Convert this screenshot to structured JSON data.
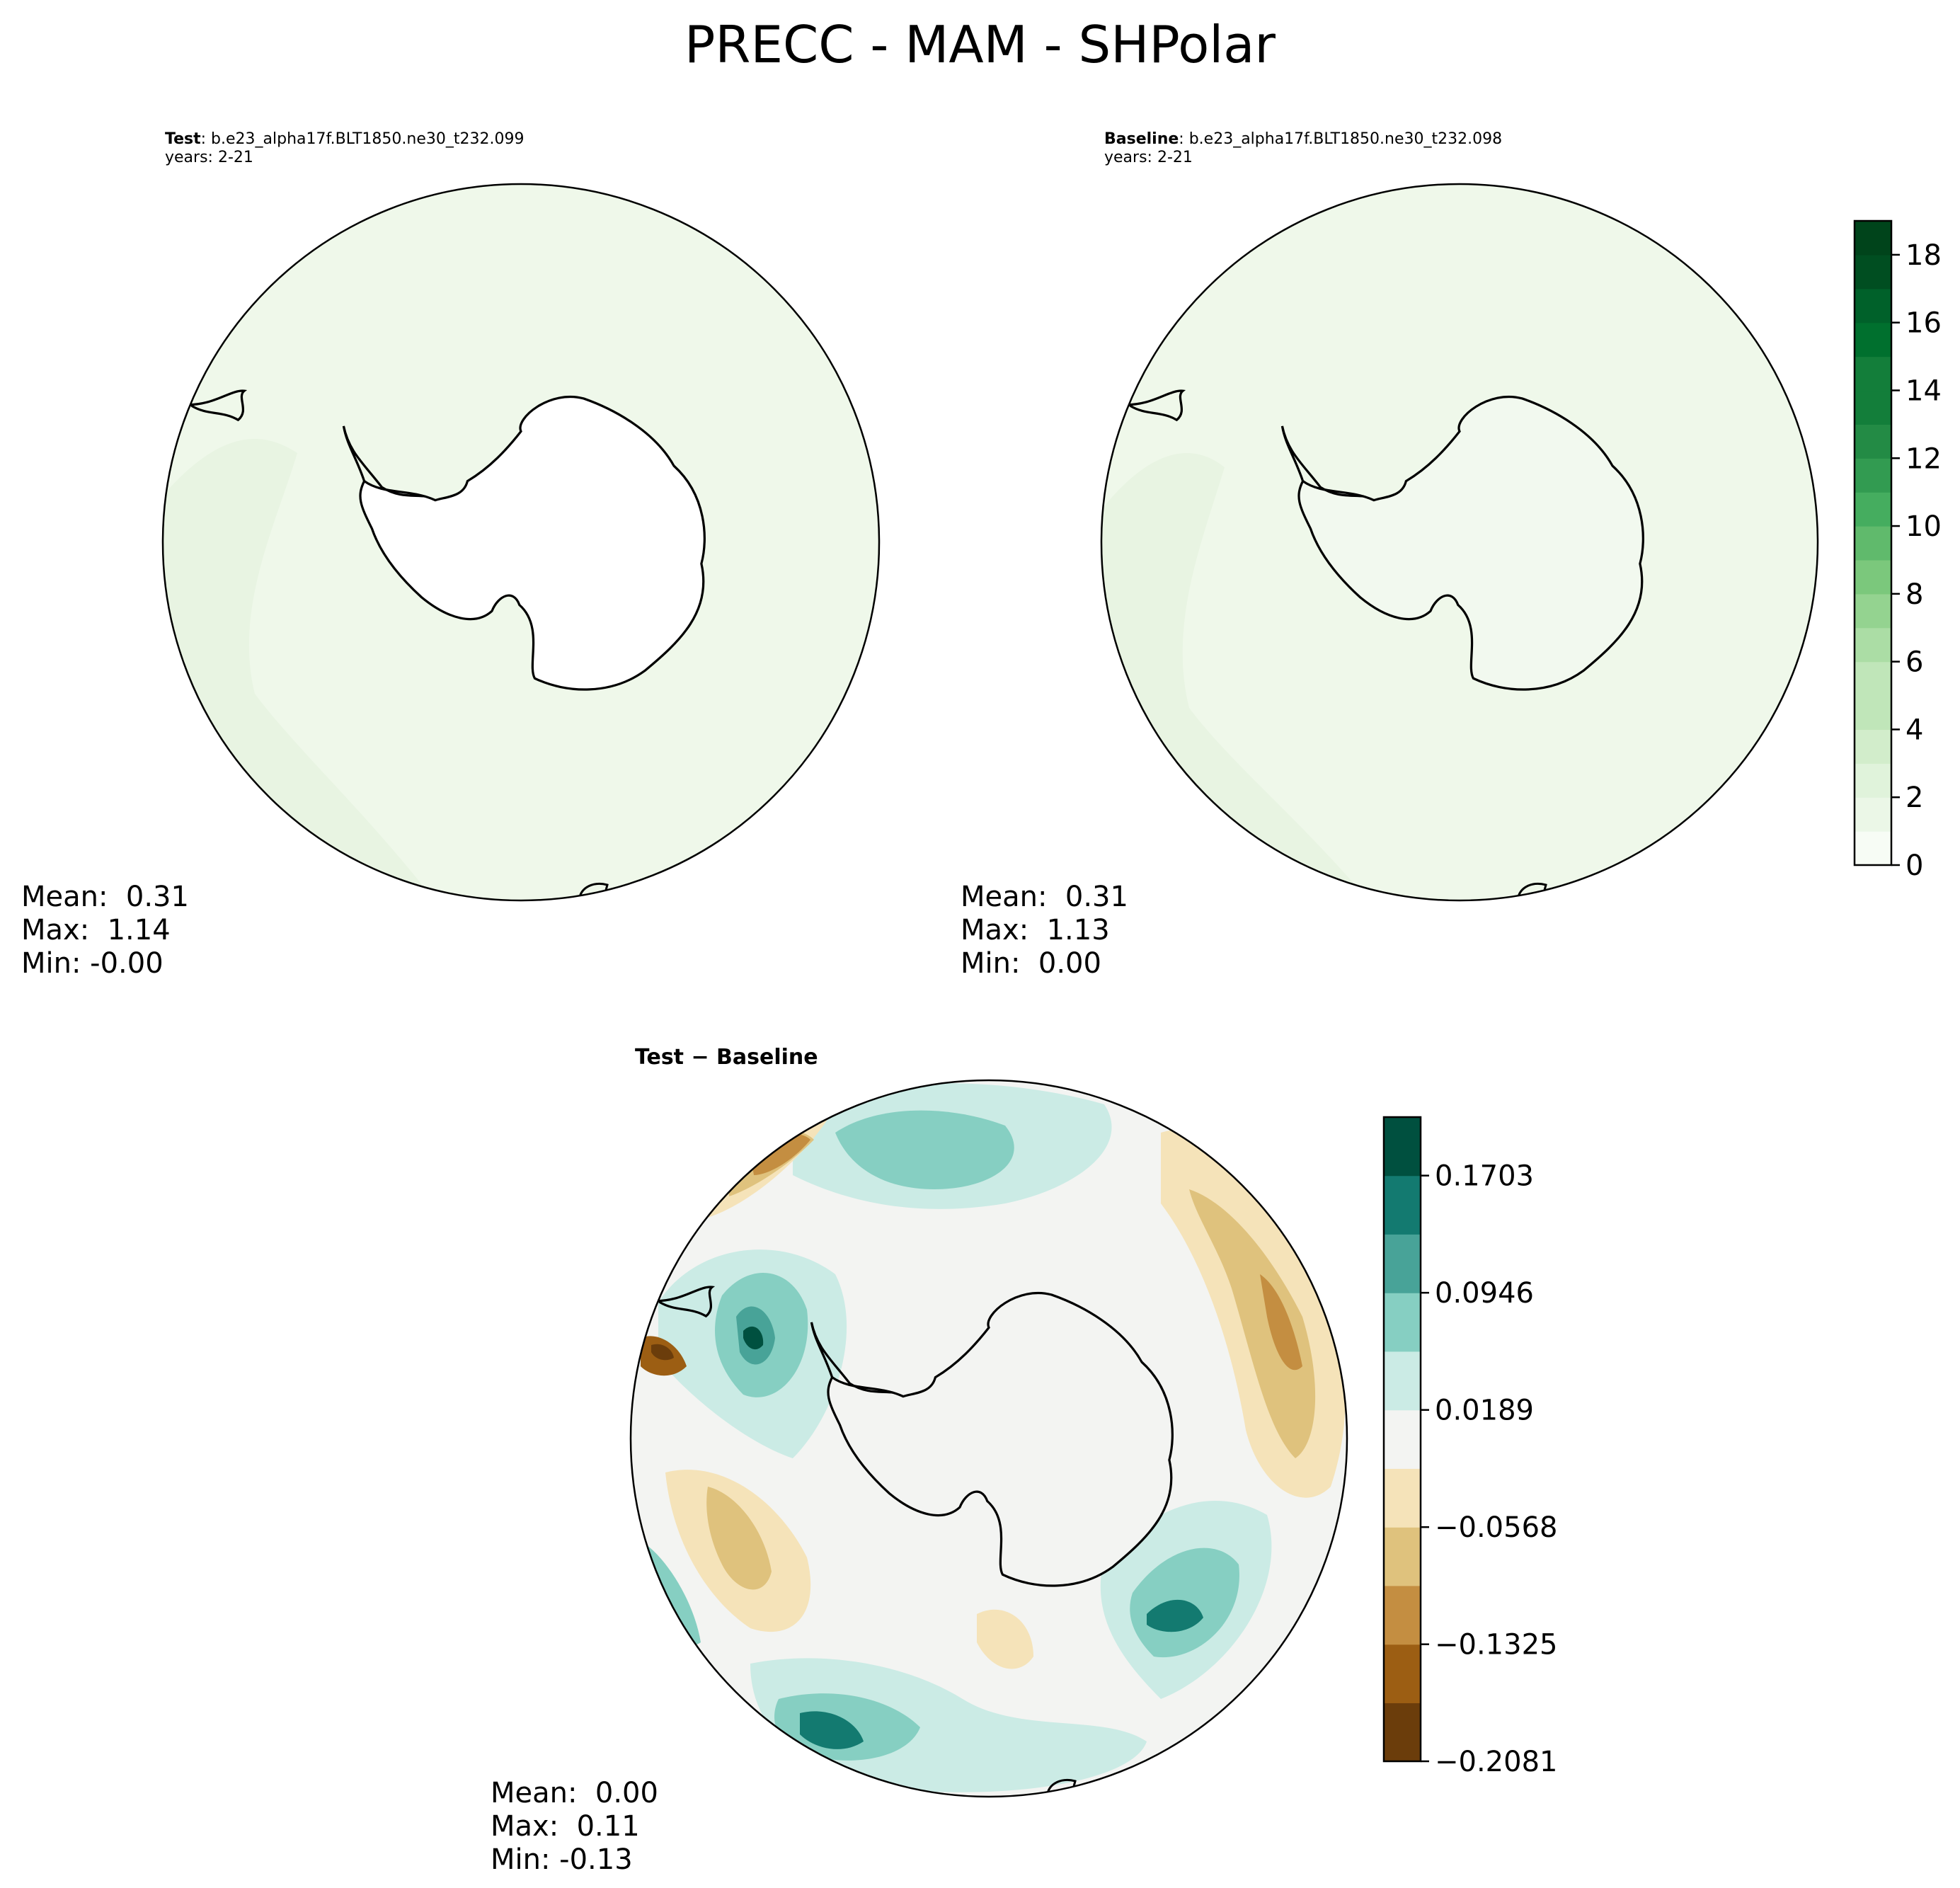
{
  "figure": {
    "title": "PRECC - MAM - SHPolar"
  },
  "panels": {
    "test": {
      "name": "Test",
      "case": ": b.e23_alpha17f.BLT1850.ne30_t232.099",
      "years": "years: 2-21",
      "mean": "Mean:  0.31",
      "max": "Max:  1.14",
      "min": "Min: -0.00"
    },
    "baseline": {
      "name": "Baseline",
      "case": ": b.e23_alpha17f.BLT1850.ne30_t232.098",
      "years": "years: 2-21",
      "mean": "Mean:  0.31",
      "max": "Max:  1.13",
      "min": "Min:  0.00"
    },
    "diff": {
      "title": "Test − Baseline",
      "mean": "Mean:  0.00",
      "max": "Max:  0.11",
      "min": "Min: -0.13"
    }
  },
  "colors": {
    "green_scale": [
      "#f7fcf5",
      "#ebf7e7",
      "#e0f3db",
      "#d2edcb",
      "#c0e6b9",
      "#abdda5",
      "#94d390",
      "#7bc87c",
      "#60ba6c",
      "#45ad5f",
      "#329b51",
      "#238b45",
      "#137e3a",
      "#00702e",
      "#00612a",
      "#004e21",
      "#00441b"
    ],
    "brbg_scale": [
      "#6b3d0b",
      "#9c5e13",
      "#c48e41",
      "#dfc27d",
      "#f5e3b9",
      "#f3f4f2",
      "#cbebe5",
      "#86cfc2",
      "#48a398",
      "#137a70",
      "#00503f"
    ],
    "outline": "#000000",
    "ocean_test": "#eff8ea",
    "ocean_test_dark": "#e8f4e2",
    "land_test": "#ffffff",
    "land_baseline": "#f2f9ef"
  },
  "chart_data": [
    {
      "type": "heatmap",
      "panel": "test",
      "projection": "south-polar-stereographic",
      "variable": "PRECC",
      "stats": {
        "mean": 0.31,
        "max": 1.14,
        "min": -0.0
      },
      "colorbar": "shared-green"
    },
    {
      "type": "heatmap",
      "panel": "baseline",
      "projection": "south-polar-stereographic",
      "variable": "PRECC",
      "stats": {
        "mean": 0.31,
        "max": 1.13,
        "min": 0.0
      },
      "colorbar": {
        "levels": [
          0,
          1,
          2,
          3,
          4,
          5,
          6,
          7,
          8,
          9,
          10,
          11,
          12,
          13,
          14,
          15,
          16,
          17,
          18,
          19
        ],
        "ticks": [
          0,
          2,
          4,
          6,
          8,
          10,
          12,
          14,
          16,
          18
        ],
        "tick_labels": [
          "0",
          "2",
          "4",
          "6",
          "8",
          "10",
          "12",
          "14",
          "16",
          "18"
        ],
        "range": [
          0,
          19
        ]
      }
    },
    {
      "type": "heatmap",
      "panel": "diff",
      "projection": "south-polar-stereographic",
      "variable": "PRECC difference",
      "stats": {
        "mean": 0.0,
        "max": 0.11,
        "min": -0.13
      },
      "colorbar": {
        "boundaries": [
          -0.2081,
          -0.1703,
          -0.1325,
          -0.0946,
          -0.0568,
          -0.0189,
          0.0189,
          0.0568,
          0.0946,
          0.1325,
          0.1703,
          0.2081
        ],
        "ticks": [
          -0.2081,
          -0.1325,
          -0.0568,
          0.0189,
          0.0946,
          0.1703
        ],
        "tick_labels": [
          "−0.2081",
          "−0.1325",
          "−0.0568",
          "0.0189",
          "0.0946",
          "0.1703"
        ],
        "range": [
          -0.2081,
          0.2081
        ]
      }
    }
  ]
}
